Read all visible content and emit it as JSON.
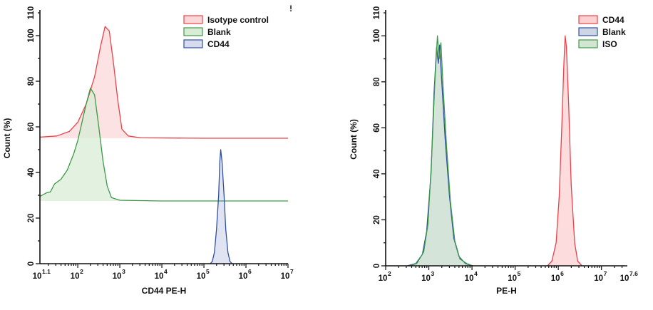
{
  "chart_data": [
    {
      "type": "area",
      "title": "",
      "xlabel": "CD44 PE-H",
      "ylabel": "Count  (%)",
      "xscale": "log10",
      "xlim": [
        1.1,
        7
      ],
      "ylim": [
        0,
        110
      ],
      "y_ticks": [
        0,
        20,
        40,
        60,
        80,
        100
      ],
      "x_tick_labels": [
        {
          "base": "10",
          "exp": "1.1",
          "value": 1.1
        },
        {
          "base": "10",
          "exp": "2",
          "value": 2
        },
        {
          "base": "10",
          "exp": "3",
          "value": 3
        },
        {
          "base": "10",
          "exp": "4",
          "value": 4
        },
        {
          "base": "10",
          "exp": "5",
          "value": 5
        },
        {
          "base": "10",
          "exp": "6",
          "value": 6
        },
        {
          "base": "10",
          "exp": "7",
          "value": 7
        }
      ],
      "legend_position": "top-right",
      "annotation": "!",
      "series": [
        {
          "name": "Isotype control",
          "stroke": "#e8424a",
          "fill": "#fbd8d8",
          "baseline": 55,
          "points": [
            [
              1.1,
              55.5
            ],
            [
              1.5,
              56
            ],
            [
              1.8,
              58
            ],
            [
              2.0,
              62
            ],
            [
              2.2,
              70
            ],
            [
              2.4,
              82
            ],
            [
              2.55,
              96
            ],
            [
              2.65,
              104
            ],
            [
              2.75,
              102
            ],
            [
              2.85,
              88
            ],
            [
              2.95,
              72
            ],
            [
              3.05,
              59
            ],
            [
              3.2,
              56
            ],
            [
              3.5,
              55.2
            ],
            [
              5.0,
              55
            ],
            [
              7.0,
              55
            ]
          ]
        },
        {
          "name": "Blank",
          "stroke": "#3d9a48",
          "fill": "#d8ecd6",
          "baseline": 27.5,
          "points": [
            [
              1.1,
              29.5
            ],
            [
              1.25,
              31
            ],
            [
              1.35,
              31.5
            ],
            [
              1.45,
              35
            ],
            [
              1.6,
              37
            ],
            [
              1.75,
              41
            ],
            [
              1.9,
              48
            ],
            [
              2.0,
              54
            ],
            [
              2.1,
              62
            ],
            [
              2.2,
              70
            ],
            [
              2.3,
              77
            ],
            [
              2.4,
              74
            ],
            [
              2.5,
              60
            ],
            [
              2.6,
              45
            ],
            [
              2.7,
              34
            ],
            [
              2.8,
              29
            ],
            [
              3.0,
              27.8
            ],
            [
              4.0,
              27.5
            ],
            [
              7.0,
              27.5
            ]
          ]
        },
        {
          "name": "CD44",
          "stroke": "#2f4fa3",
          "fill": "#d6dbee",
          "baseline": 0,
          "points": [
            [
              5.15,
              0
            ],
            [
              5.2,
              1
            ],
            [
              5.25,
              5
            ],
            [
              5.3,
              15
            ],
            [
              5.35,
              30
            ],
            [
              5.38,
              45
            ],
            [
              5.4,
              50
            ],
            [
              5.43,
              45
            ],
            [
              5.48,
              30
            ],
            [
              5.52,
              15
            ],
            [
              5.57,
              5
            ],
            [
              5.62,
              1
            ],
            [
              5.67,
              0
            ]
          ]
        }
      ]
    },
    {
      "type": "area",
      "title": "",
      "xlabel": "PE-H",
      "ylabel": "Count  (%)",
      "xscale": "log10",
      "xlim": [
        2,
        7.6
      ],
      "ylim": [
        0,
        110
      ],
      "y_ticks": [
        0,
        20,
        40,
        60,
        80,
        100
      ],
      "x_tick_labels": [
        {
          "base": "10",
          "exp": "2",
          "value": 2
        },
        {
          "base": "10",
          "exp": "3",
          "value": 3
        },
        {
          "base": "10",
          "exp": "4",
          "value": 4
        },
        {
          "base": "10",
          "exp": "5",
          "value": 5
        },
        {
          "base": "10",
          "exp": "6",
          "value": 6
        },
        {
          "base": "10",
          "exp": "7",
          "value": 7
        },
        {
          "base": "10",
          "exp": "7.6",
          "value": 7.6
        }
      ],
      "legend_position": "top-right",
      "series": [
        {
          "name": "CD44",
          "stroke": "#e8424a",
          "fill": "#fbd0d0",
          "baseline": 0,
          "points": [
            [
              5.75,
              0
            ],
            [
              5.85,
              2
            ],
            [
              5.95,
              10
            ],
            [
              6.02,
              30
            ],
            [
              6.08,
              60
            ],
            [
              6.13,
              88
            ],
            [
              6.16,
              100
            ],
            [
              6.19,
              95
            ],
            [
              6.24,
              70
            ],
            [
              6.3,
              35
            ],
            [
              6.38,
              10
            ],
            [
              6.45,
              2
            ],
            [
              6.55,
              0
            ]
          ]
        },
        {
          "name": "Blank",
          "stroke": "#2f4fa3",
          "fill": "#ced6e3",
          "baseline": 0,
          "points": [
            [
              2.5,
              0
            ],
            [
              2.7,
              1
            ],
            [
              2.85,
              5
            ],
            [
              2.95,
              15
            ],
            [
              3.05,
              40
            ],
            [
              3.12,
              75
            ],
            [
              3.18,
              95
            ],
            [
              3.22,
              88
            ],
            [
              3.25,
              96
            ],
            [
              3.3,
              80
            ],
            [
              3.38,
              55
            ],
            [
              3.48,
              30
            ],
            [
              3.58,
              12
            ],
            [
              3.7,
              4
            ],
            [
              3.85,
              1
            ],
            [
              4.0,
              0
            ]
          ]
        },
        {
          "name": "ISO",
          "stroke": "#3d9a48",
          "fill": "#d2e6d2",
          "baseline": 0,
          "points": [
            [
              2.55,
              0
            ],
            [
              2.72,
              1
            ],
            [
              2.88,
              6
            ],
            [
              2.98,
              18
            ],
            [
              3.06,
              45
            ],
            [
              3.14,
              80
            ],
            [
              3.2,
              100
            ],
            [
              3.24,
              90
            ],
            [
              3.28,
              97
            ],
            [
              3.33,
              78
            ],
            [
              3.41,
              52
            ],
            [
              3.5,
              28
            ],
            [
              3.6,
              11
            ],
            [
              3.72,
              3
            ],
            [
              3.88,
              1
            ],
            [
              4.02,
              0
            ]
          ]
        }
      ]
    }
  ]
}
